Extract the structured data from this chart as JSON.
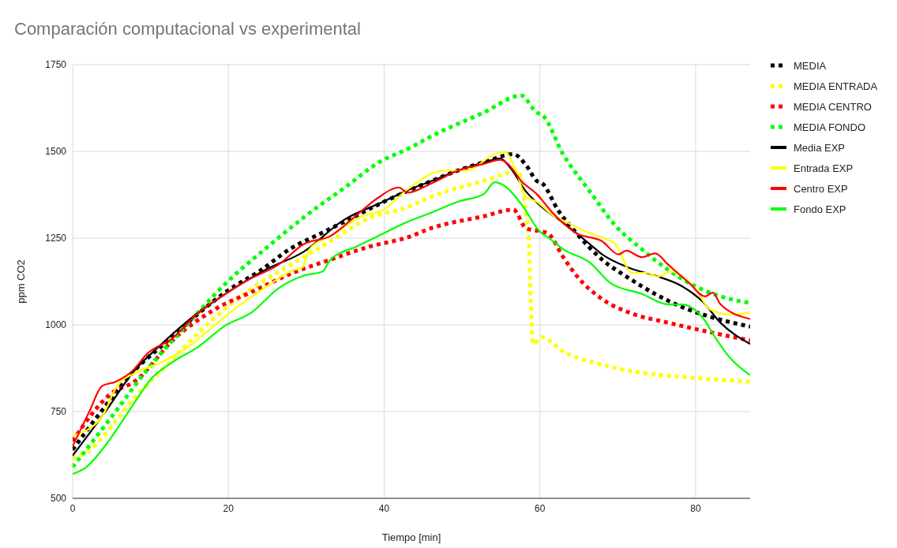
{
  "chart_data": {
    "type": "line",
    "title": "Comparación computacional vs experimental",
    "xlabel": "Tiempo [min]",
    "ylabel": "ppm CO2",
    "xlim": [
      0,
      87
    ],
    "xticks": [
      0,
      20,
      40,
      60,
      80
    ],
    "ylim": [
      500,
      1750
    ],
    "yticks": [
      500,
      750,
      1000,
      1250,
      1500,
      1750
    ],
    "grid": true,
    "legend": "top right",
    "marker": "none",
    "series": [
      {
        "name": "MEDIA",
        "color": "#000000",
        "line_style": "dotted",
        "x": [
          0,
          4,
          8,
          12,
          16,
          20,
          24,
          28,
          32,
          36,
          40,
          46.1,
          49.5,
          53,
          56.6,
          58.2,
          59.6,
          60.3,
          62.3,
          64.7,
          68,
          71.4,
          74.8,
          78.2,
          81.6,
          87
        ],
        "values": [
          640,
          760,
          870,
          950,
          1030,
          1100,
          1155,
          1220,
          1265,
          1310,
          1355,
          1415,
          1445,
          1470,
          1492,
          1461,
          1415,
          1408,
          1332,
          1264,
          1188,
          1135,
          1089,
          1052,
          1025,
          995
        ]
      },
      {
        "name": "MEDIA ENTRADA",
        "color": "#ffff00",
        "line_style": "dotted",
        "x": [
          0,
          2.3,
          7.8,
          12.8,
          17.9,
          23,
          28,
          33.1,
          38.2,
          43,
          46.1,
          52.8,
          57.2,
          58.2,
          58.6,
          58.8,
          59.1,
          60.3,
          63,
          68,
          73.1,
          79.9,
          87
        ],
        "values": [
          615,
          642,
          786,
          900,
          1014,
          1105,
          1173,
          1241,
          1309,
          1339,
          1370,
          1415,
          1442,
          1324,
          1233,
          1082,
          945,
          964,
          923,
          885,
          862,
          847,
          836
        ]
      },
      {
        "name": "MEDIA CENTRO",
        "color": "#ff0000",
        "line_style": "dotted",
        "x": [
          0,
          2.4,
          4.7,
          8.1,
          13.1,
          18.2,
          23.2,
          28.3,
          33.1,
          38.2,
          43,
          46.1,
          52.8,
          56.6,
          58.2,
          61,
          63,
          64.7,
          68,
          71.4,
          76.5,
          81.6,
          87
        ],
        "values": [
          665,
          741,
          798,
          839,
          961,
          1044,
          1097,
          1150,
          1188,
          1226,
          1252,
          1279,
          1313,
          1332,
          1279,
          1264,
          1195,
          1142,
          1074,
          1036,
          1006,
          980,
          955
        ]
      },
      {
        "name": "MEDIA FONDO",
        "color": "#00ff00",
        "line_style": "dotted",
        "x": [
          0,
          4.7,
          9.8,
          14.9,
          20,
          25.1,
          30.1,
          35.2,
          39.3,
          43.3,
          46.1,
          52.8,
          57.6,
          59.6,
          60.3,
          63,
          66.4,
          69.7,
          73.1,
          76.5,
          79.9,
          83.2,
          87
        ],
        "values": [
          590,
          726,
          877,
          1006,
          1127,
          1226,
          1317,
          1400,
          1468,
          1510,
          1544,
          1612,
          1661,
          1612,
          1605,
          1491,
          1385,
          1286,
          1218,
          1158,
          1112,
          1082,
          1063
        ]
      },
      {
        "name": "Media EXP",
        "color": "#000000",
        "line_style": "solid",
        "x": [
          0,
          4.4,
          7.7,
          11.1,
          14.5,
          19.6,
          24.7,
          29.7,
          34.8,
          39.9,
          42.7,
          46.1,
          49.5,
          52.8,
          54.9,
          56.2,
          58.2,
          60.3,
          63,
          66.4,
          68,
          71.4,
          74.8,
          78.2,
          80.9,
          83.2,
          87
        ],
        "values": [
          623,
          756,
          862,
          938,
          1006,
          1089,
          1158,
          1211,
          1302,
          1355,
          1385,
          1415,
          1445,
          1468,
          1480,
          1453,
          1385,
          1339,
          1294,
          1233,
          1203,
          1165,
          1142,
          1112,
          1067,
          1006,
          945
        ]
      },
      {
        "name": "Entrada EXP",
        "color": "#ffff00",
        "line_style": "solid",
        "x": [
          0,
          3.7,
          5.7,
          8.1,
          11.4,
          14.9,
          18.2,
          21.6,
          25,
          28.4,
          29.5,
          30.4,
          33.1,
          36.8,
          40.2,
          42.7,
          47.8,
          50.5,
          54.5,
          55.5,
          56.9,
          58.2,
          59.6,
          61.6,
          63.6,
          65.7,
          68.4,
          69.7,
          71.8,
          73.8,
          75.1,
          76.8,
          79.9,
          81.9,
          84.9,
          87
        ],
        "values": [
          680,
          733,
          824,
          862,
          892,
          938,
          998,
          1059,
          1112,
          1158,
          1165,
          1218,
          1256,
          1309,
          1336,
          1385,
          1445,
          1445,
          1495,
          1498,
          1445,
          1370,
          1355,
          1317,
          1294,
          1271,
          1248,
          1233,
          1150,
          1150,
          1139,
          1154,
          1105,
          1044,
          1029,
          1036
        ]
      },
      {
        "name": "Centro EXP",
        "color": "#ff0000",
        "line_style": "solid",
        "x": [
          0,
          2.1,
          3.8,
          5.5,
          7.8,
          9.5,
          12.8,
          16.2,
          19.6,
          23,
          26.4,
          29.7,
          33.1,
          36.5,
          39.2,
          41.9,
          43,
          46.1,
          49.5,
          52.8,
          54.9,
          55.9,
          57.6,
          59.6,
          61.6,
          64.7,
          68,
          70.1,
          71.1,
          73.1,
          74.8,
          76.5,
          79.2,
          81.2,
          82.2,
          83.2,
          87
        ],
        "values": [
          650,
          748,
          824,
          836,
          870,
          915,
          961,
          1036,
          1089,
          1135,
          1173,
          1233,
          1256,
          1317,
          1366,
          1396,
          1381,
          1408,
          1445,
          1464,
          1476,
          1464,
          1415,
          1377,
          1324,
          1264,
          1241,
          1203,
          1214,
          1195,
          1206,
          1173,
          1120,
          1082,
          1093,
          1059,
          1017
        ]
      },
      {
        "name": "Fondo EXP",
        "color": "#00ff00",
        "line_style": "solid",
        "x": [
          0,
          1.7,
          4.4,
          7.8,
          10.2,
          12.8,
          16.2,
          19.6,
          23,
          26.4,
          29.7,
          32.1,
          33.1,
          36.5,
          39.6,
          42.7,
          46.1,
          49.5,
          52.8,
          54.2,
          55.5,
          57.9,
          59.9,
          61.3,
          63,
          66.4,
          69.1,
          73.1,
          76.5,
          78.2,
          80.9,
          82.6,
          84.3,
          87
        ],
        "values": [
          570,
          589,
          658,
          771,
          847,
          892,
          938,
          998,
          1036,
          1105,
          1142,
          1154,
          1188,
          1226,
          1260,
          1294,
          1324,
          1355,
          1377,
          1411,
          1400,
          1339,
          1271,
          1248,
          1218,
          1180,
          1120,
          1089,
          1059,
          1059,
          1021,
          961,
          908,
          855
        ]
      }
    ]
  }
}
